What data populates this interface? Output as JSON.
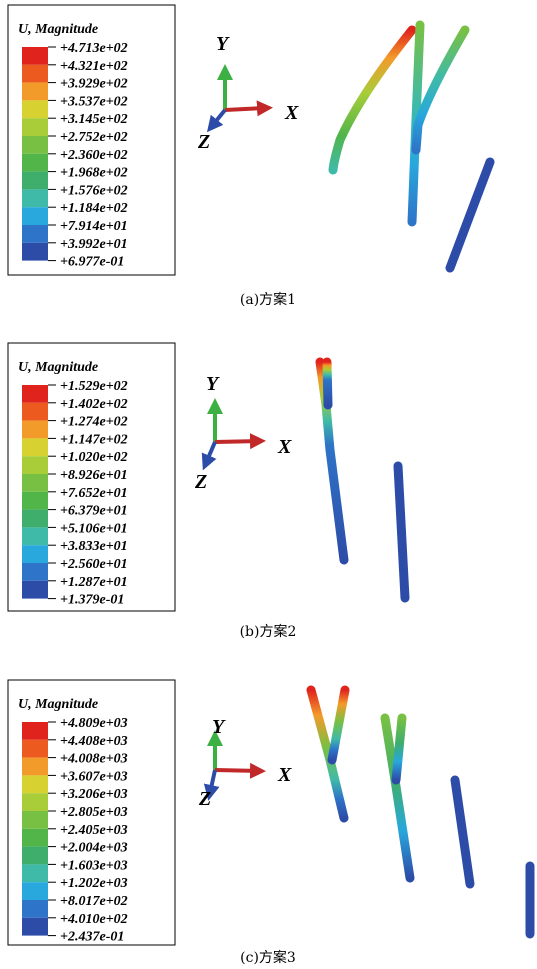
{
  "panels": [
    {
      "legend": {
        "title": "U, Magnitude",
        "labels": [
          "+4.713e+02",
          "+4.321e+02",
          "+3.929e+02",
          "+3.537e+02",
          "+3.145e+02",
          "+2.752e+02",
          "+2.360e+02",
          "+1.968e+02",
          "+1.576e+02",
          "+1.184e+02",
          "+7.914e+01",
          "+3.992e+01",
          "+6.977e-01"
        ]
      },
      "axes": {
        "y": "Y",
        "x": "X",
        "z": "Z"
      },
      "caption": "(a)方案1"
    },
    {
      "legend": {
        "title": "U, Magnitude",
        "labels": [
          "+1.529e+02",
          "+1.402e+02",
          "+1.274e+02",
          "+1.147e+02",
          "+1.020e+02",
          "+8.926e+01",
          "+7.652e+01",
          "+6.379e+01",
          "+5.106e+01",
          "+3.833e+01",
          "+2.560e+01",
          "+1.287e+01",
          "+1.379e-01"
        ]
      },
      "axes": {
        "y": "Y",
        "x": "X",
        "z": "Z"
      },
      "caption": "(b)方案2"
    },
    {
      "legend": {
        "title": "U, Magnitude",
        "labels": [
          "+4.809e+03",
          "+4.408e+03",
          "+4.008e+03",
          "+3.607e+03",
          "+3.206e+03",
          "+2.805e+03",
          "+2.405e+03",
          "+2.004e+03",
          "+1.603e+03",
          "+1.202e+03",
          "+8.017e+02",
          "+4.010e+02",
          "+2.437e-01"
        ]
      },
      "axes": {
        "y": "Y",
        "x": "X",
        "z": "Z"
      },
      "caption": "(c)方案3"
    }
  ]
}
